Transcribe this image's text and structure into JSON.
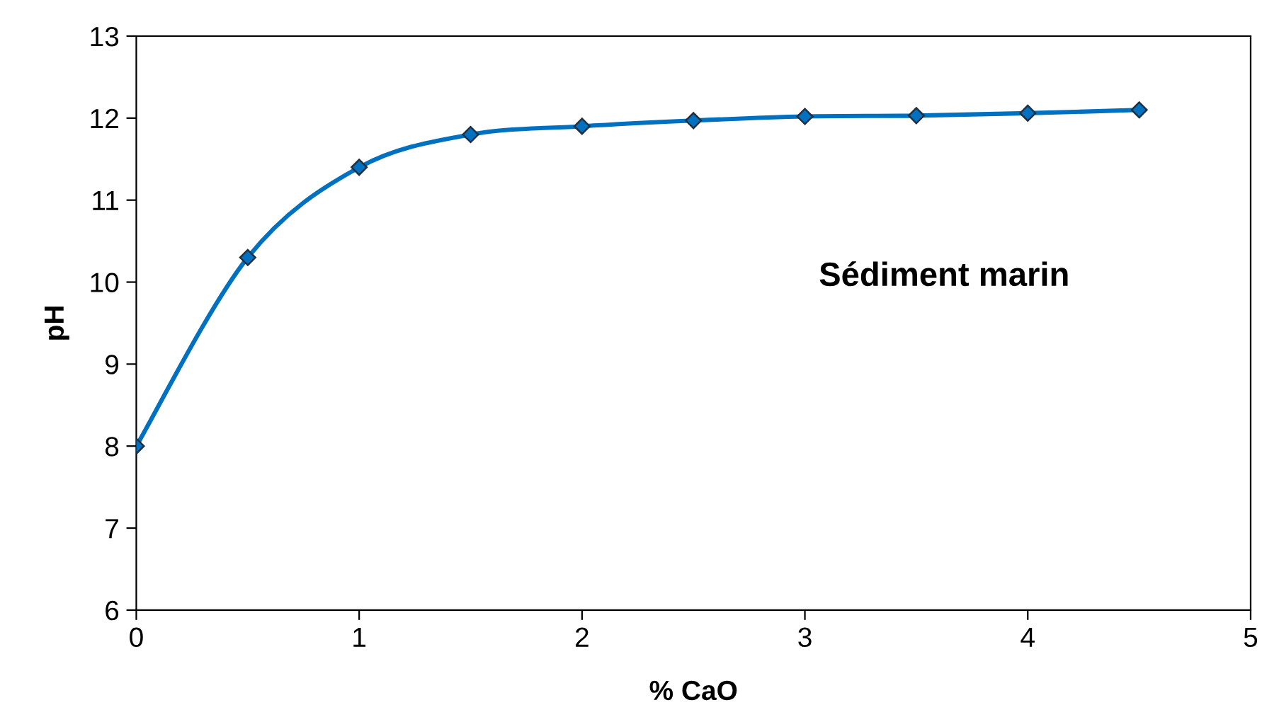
{
  "chart_data": {
    "type": "line",
    "xlabel": "% CaO",
    "ylabel": "pH",
    "annotations": [
      "Sédiment marin"
    ],
    "x": [
      0,
      0.5,
      1,
      1.5,
      2,
      2.5,
      3,
      3.5,
      4,
      4.5
    ],
    "series": [
      {
        "color": "#0070c0",
        "values": [
          8,
          10.3,
          11.4,
          11.8,
          11.9,
          11.97,
          12.02,
          12.03,
          12.06,
          12.1
        ]
      }
    ],
    "marker": "diamond",
    "line_style": "solid",
    "grid": false,
    "legend": false,
    "xlim": [
      0,
      5
    ],
    "xticks": [
      0,
      1,
      2,
      3,
      4,
      5
    ],
    "ylim": [
      6,
      13
    ],
    "yticks": [
      6,
      7,
      8,
      9,
      10,
      11,
      12,
      13
    ]
  }
}
